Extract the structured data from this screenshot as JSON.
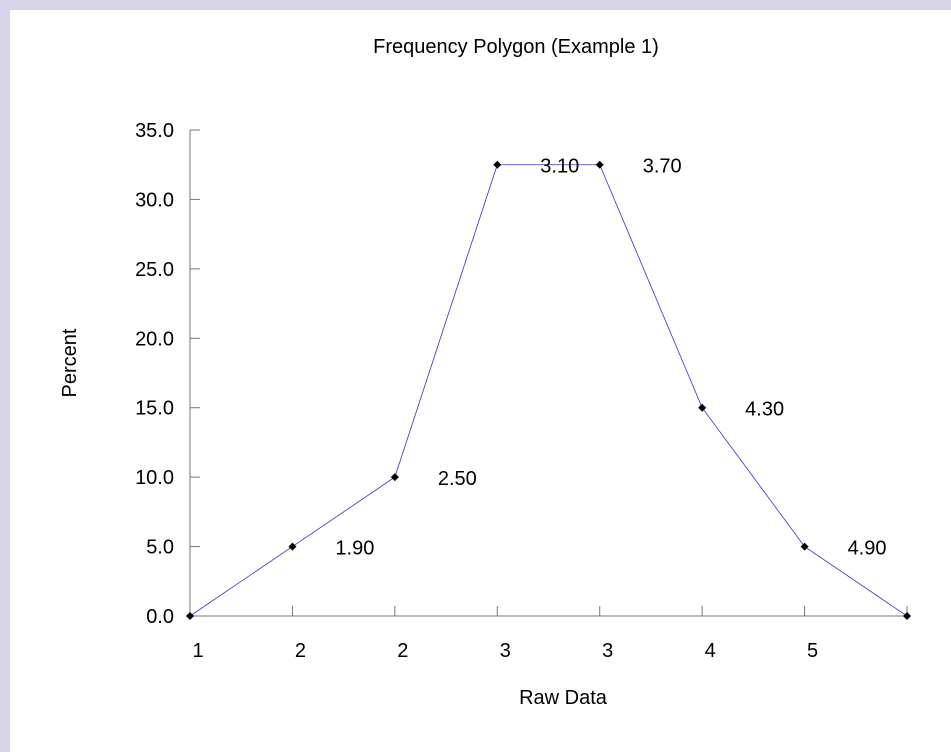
{
  "chart_data": {
    "type": "line",
    "title": "Frequency Polygon (Example 1)",
    "xlabel": "Raw Data",
    "ylabel": "Percent",
    "x_tick_labels": [
      "1",
      "2",
      "2",
      "3",
      "3",
      "4",
      "5"
    ],
    "y_tick_labels": [
      "0.0",
      "5.0",
      "10.0",
      "15.0",
      "20.0",
      "25.0",
      "30.0",
      "35.0"
    ],
    "ylim": [
      0,
      35
    ],
    "grid": false,
    "legend": "none",
    "series": [
      {
        "color": "#3333cc",
        "points": [
          {
            "x": 1.3,
            "y": 0.0,
            "label": ""
          },
          {
            "x": 1.9,
            "y": 5.0,
            "label": "1.90"
          },
          {
            "x": 2.5,
            "y": 10.0,
            "label": "2.50"
          },
          {
            "x": 3.1,
            "y": 32.5,
            "label": "3.10"
          },
          {
            "x": 3.7,
            "y": 32.5,
            "label": "3.70"
          },
          {
            "x": 4.3,
            "y": 15.0,
            "label": "4.30"
          },
          {
            "x": 4.9,
            "y": 5.0,
            "label": "4.90"
          },
          {
            "x": 5.5,
            "y": 0.0,
            "label": ""
          }
        ]
      }
    ]
  }
}
